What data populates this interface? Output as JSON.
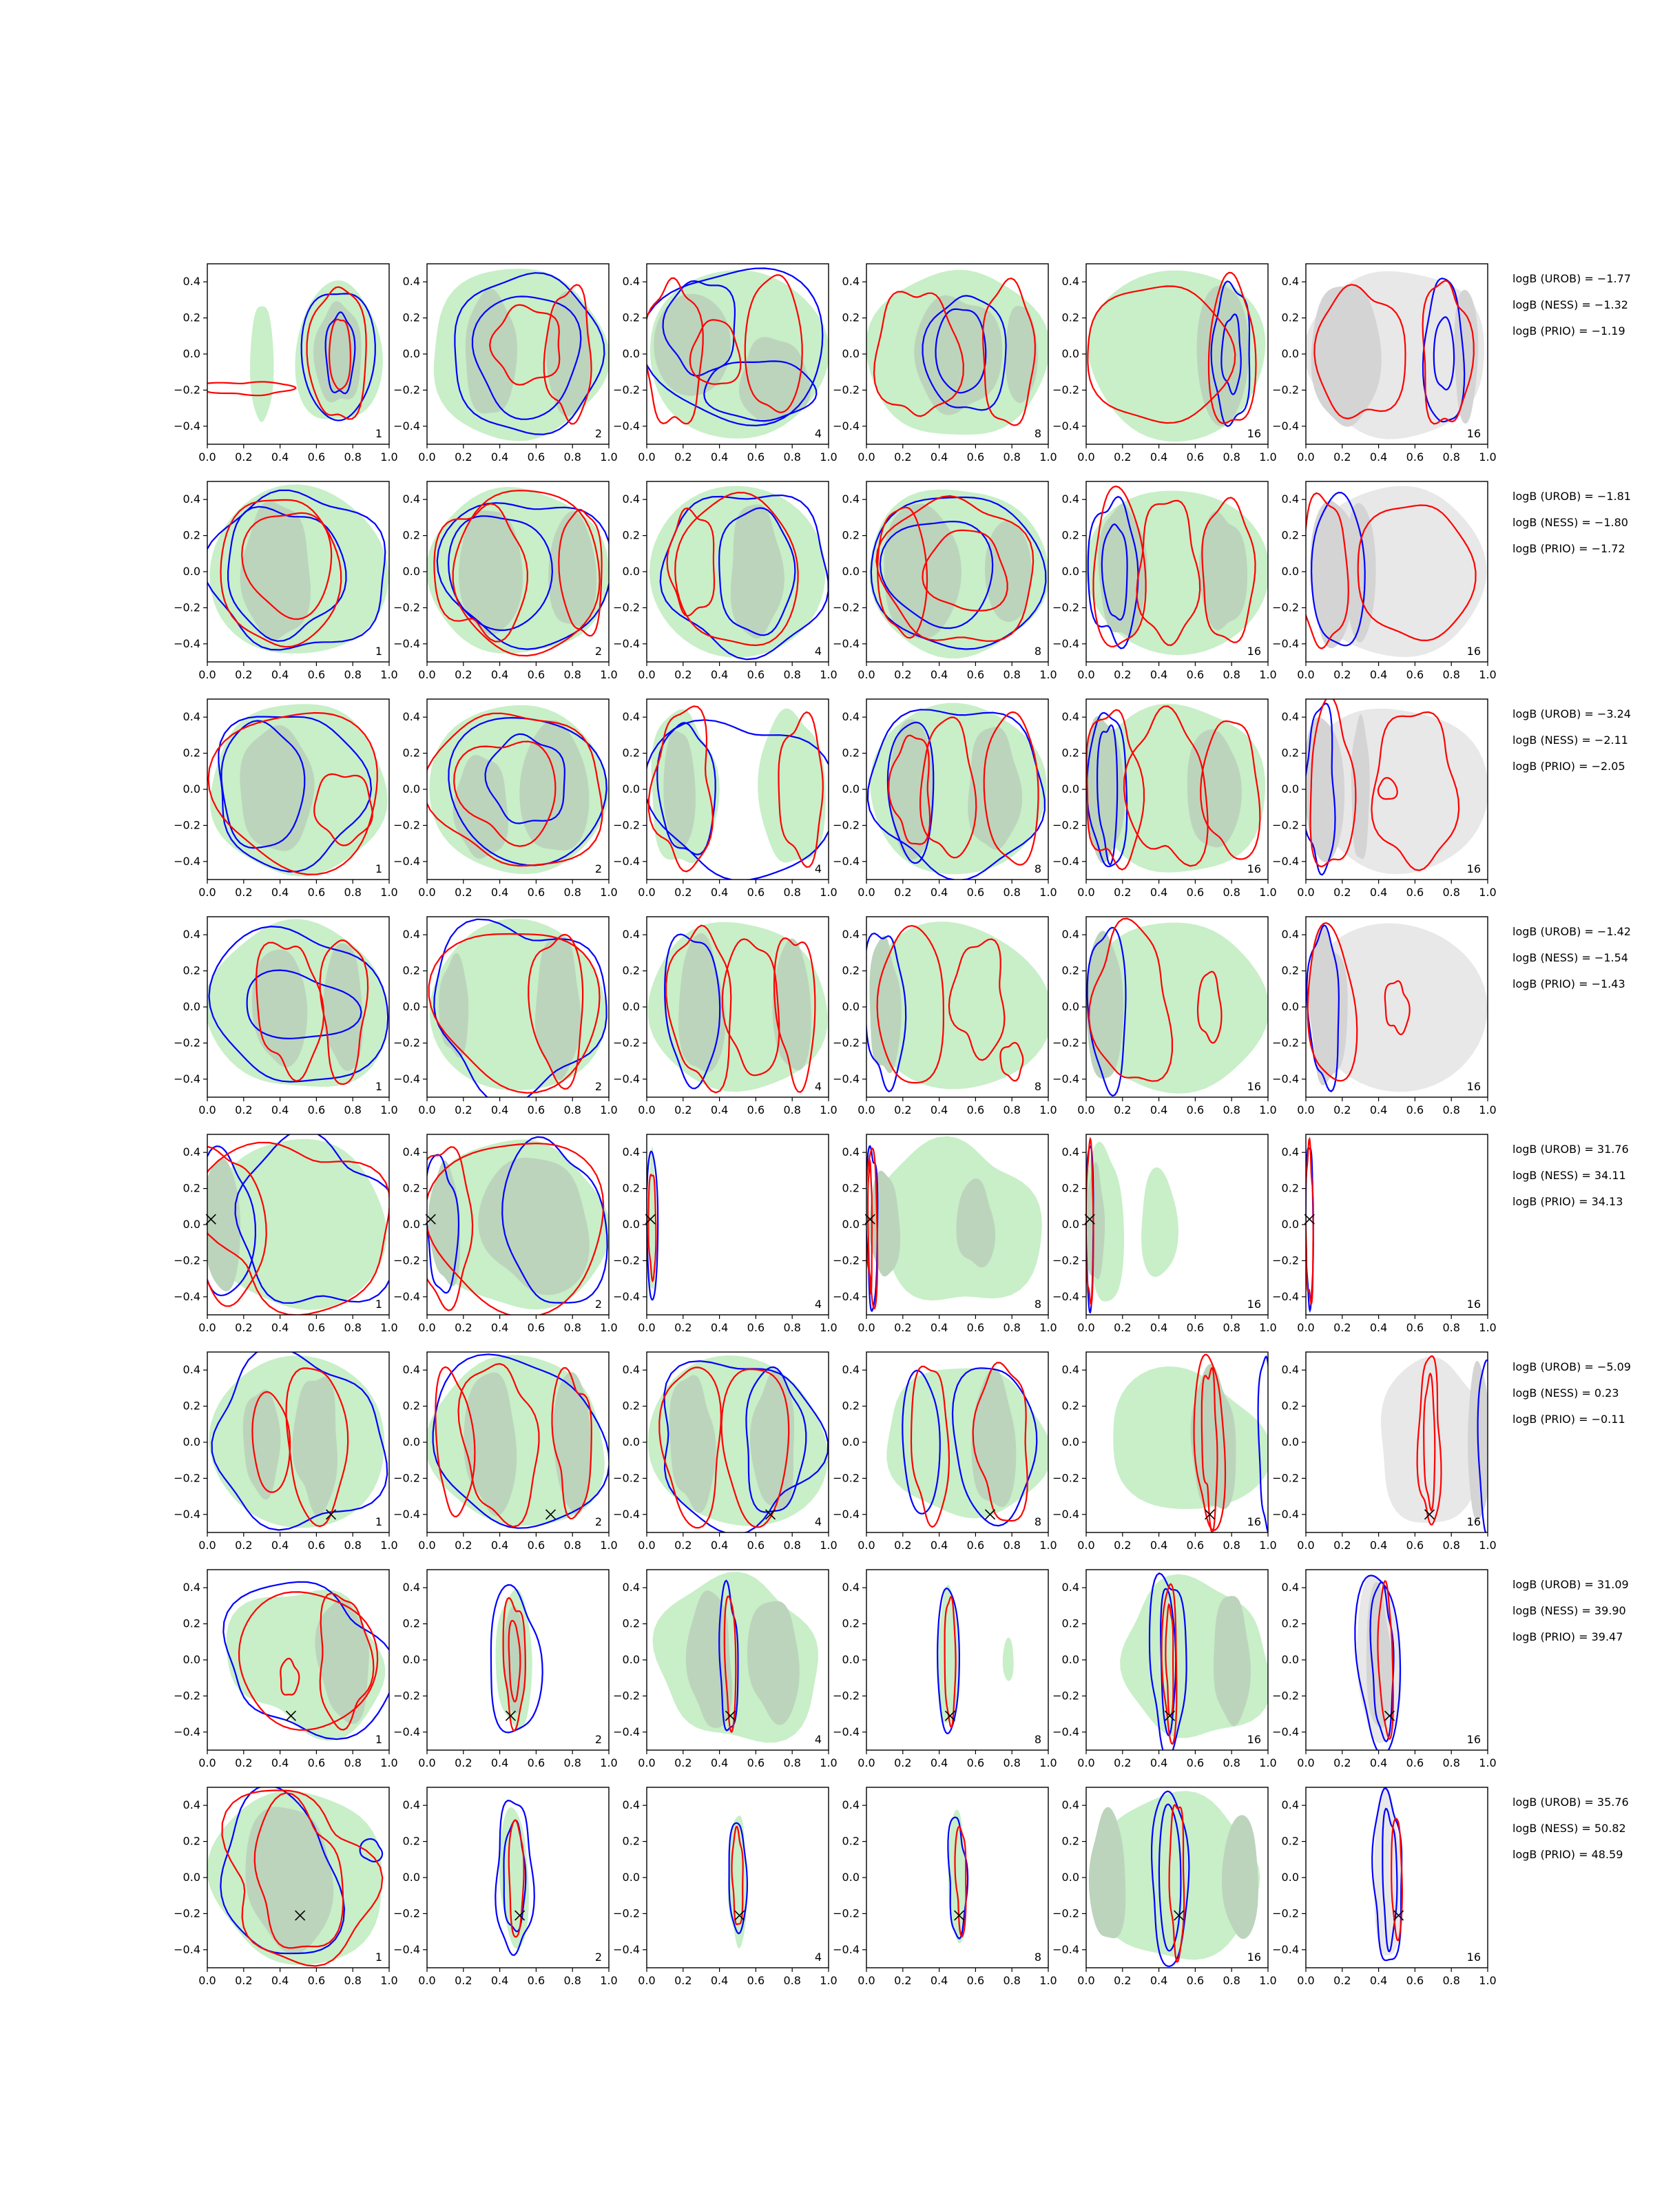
{
  "figure": {
    "columns": [
      1,
      2,
      4,
      8,
      16,
      16
    ],
    "x_ticks": [
      "0.0",
      "0.2",
      "0.4",
      "0.6",
      "0.8",
      "1.0"
    ],
    "y_ticks": [
      "−0.4",
      "−0.2",
      "0.0",
      "0.2",
      "0.4"
    ],
    "colors": {
      "fill_light": "#c8efc8",
      "fill_dark": "#bcd4bc",
      "grey_light": "#e8e8e8",
      "grey_dark": "#d4d4d4",
      "contour_blue": "#0000ff",
      "contour_red": "#ff0000",
      "marker": "#000000"
    }
  },
  "chart_data": [
    {
      "type": "contour",
      "row": 1,
      "annotations": {
        "urob": "logB (UROB) = −1.77",
        "ness": "logB (NESS) = −1.32",
        "prio": "logB (PRIO) = −1.19"
      },
      "marker": null
    },
    {
      "type": "contour",
      "row": 2,
      "annotations": {
        "urob": "logB (UROB) = −1.81",
        "ness": "logB (NESS) = −1.80",
        "prio": "logB (PRIO) = −1.72"
      },
      "marker": null
    },
    {
      "type": "contour",
      "row": 3,
      "annotations": {
        "urob": "logB (UROB) = −3.24",
        "ness": "logB (NESS) = −2.11",
        "prio": "logB (PRIO) = −2.05"
      },
      "marker": null
    },
    {
      "type": "contour",
      "row": 4,
      "annotations": {
        "urob": "logB (UROB) = −1.42",
        "ness": "logB (NESS) = −1.54",
        "prio": "logB (PRIO) = −1.43"
      },
      "marker": null
    },
    {
      "type": "contour",
      "row": 5,
      "annotations": {
        "urob": "logB (UROB) = 31.76",
        "ness": "logB (NESS) = 34.11",
        "prio": "logB (PRIO) = 34.13"
      },
      "marker": [
        0.02,
        0.03
      ]
    },
    {
      "type": "contour",
      "row": 6,
      "annotations": {
        "urob": "logB (UROB) = −5.09",
        "ness": "logB (NESS) = 0.23",
        "prio": "logB (PRIO) = −0.11"
      },
      "marker": [
        0.68,
        -0.4
      ]
    },
    {
      "type": "contour",
      "row": 7,
      "annotations": {
        "urob": "logB (UROB) = 31.09",
        "ness": "logB (NESS) = 39.90",
        "prio": "logB (PRIO) = 39.47"
      },
      "marker": [
        0.46,
        -0.31
      ]
    },
    {
      "type": "contour",
      "row": 8,
      "annotations": {
        "urob": "logB (UROB) = 35.76",
        "ness": "logB (NESS) = 50.82",
        "prio": "logB (PRIO) = 48.59"
      },
      "marker": [
        0.51,
        -0.21
      ]
    }
  ]
}
